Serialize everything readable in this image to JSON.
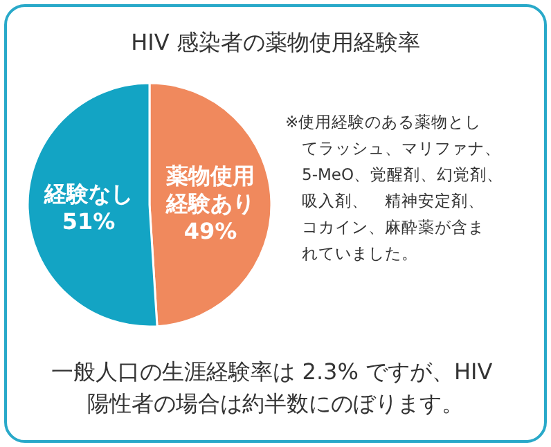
{
  "chart_data": {
    "type": "pie",
    "title": "HIV 感染者の薬物使用経験率",
    "categories": [
      "薬物使用経験あり",
      "経験なし"
    ],
    "values": [
      49,
      51
    ],
    "value_labels": [
      "49%",
      "51%"
    ],
    "colors": [
      "#f0895d",
      "#13a4c4"
    ],
    "annotations": [
      "※使用経験のある薬物としてラッシュ、マリファナ、5-MeO、覚醒剤、幻覚剤、吸入剤、　精神安定剤、コカイン、麻酔薬が含まれていました。",
      "一般人口の生涯経験率は 2.3% ですが、HIV 陽性者の場合は約半数にのぼります。"
    ]
  }
}
